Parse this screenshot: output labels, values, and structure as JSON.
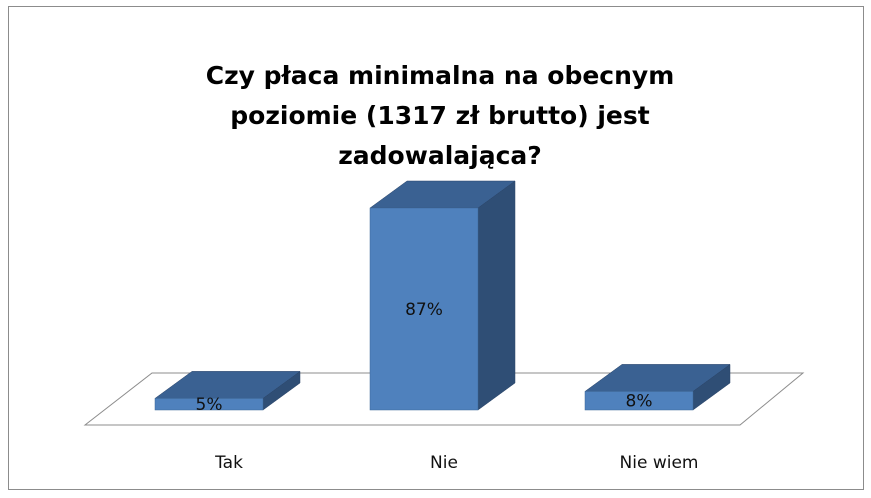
{
  "chart_data": {
    "type": "bar3d",
    "title": "Czy płaca minimalna na obecnym poziomie (1317 zł brutto) jest zadowalająca?",
    "categories": [
      "Tak",
      "Nie",
      "Nie wiem"
    ],
    "values": [
      5,
      87,
      8
    ],
    "value_labels": [
      "5%",
      "87%",
      "8%"
    ],
    "color": "#4f81bd"
  }
}
